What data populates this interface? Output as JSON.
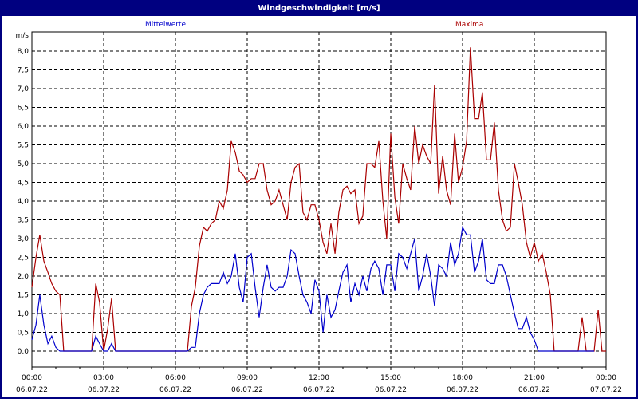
{
  "window": {
    "title": "Windgeschwindigkeit [m/s]"
  },
  "colors": {
    "titlebar": "#000080",
    "mean": "#0000cc",
    "max": "#aa0000",
    "grid": "#000000"
  },
  "chart_data": {
    "type": "line",
    "title": "Windgeschwindigkeit [m/s]",
    "xlabel": "",
    "ylabel": "m/s",
    "ylim": [
      -0.4,
      8.4
    ],
    "yticks": [
      "0,0",
      "0,5",
      "1,0",
      "1,5",
      "2,0",
      "2,5",
      "3,0",
      "3,5",
      "4,0",
      "4,5",
      "5,0",
      "5,5",
      "6,0",
      "6,5",
      "7,0",
      "7,5",
      "8,0"
    ],
    "xticks": [
      {
        "time": "00:00",
        "date": "06.07.22"
      },
      {
        "time": "03:00",
        "date": "06.07.22"
      },
      {
        "time": "06:00",
        "date": "06.07.22"
      },
      {
        "time": "09:00",
        "date": "06.07.22"
      },
      {
        "time": "12:00",
        "date": "06.07.22"
      },
      {
        "time": "15:00",
        "date": "06.07.22"
      },
      {
        "time": "18:00",
        "date": "06.07.22"
      },
      {
        "time": "21:00",
        "date": "06.07.22"
      },
      {
        "time": "00:00",
        "date": "07.07.22"
      }
    ],
    "grid": true,
    "legend": [
      "Mittelwerte",
      "Maxima"
    ],
    "x_unit": "hours since 06.07.22 00:00",
    "series": [
      {
        "name": "Mittelwerte",
        "color": "#0000cc",
        "points": [
          [
            0,
            0.3
          ],
          [
            0.17,
            0.7
          ],
          [
            0.33,
            1.5
          ],
          [
            0.5,
            0.7
          ],
          [
            0.67,
            0.2
          ],
          [
            0.83,
            0.4
          ],
          [
            1.0,
            0.1
          ],
          [
            1.17,
            0.0
          ],
          [
            1.5,
            0.0
          ],
          [
            2.0,
            0.0
          ],
          [
            2.5,
            0.0
          ],
          [
            2.67,
            0.4
          ],
          [
            2.83,
            0.2
          ],
          [
            3.0,
            0.0
          ],
          [
            3.17,
            0.0
          ],
          [
            3.33,
            0.2
          ],
          [
            3.5,
            0.0
          ],
          [
            4.0,
            0.0
          ],
          [
            5.0,
            0.0
          ],
          [
            6.0,
            0.0
          ],
          [
            6.5,
            0.0
          ],
          [
            6.67,
            0.1
          ],
          [
            6.83,
            0.1
          ],
          [
            7.0,
            1.0
          ],
          [
            7.17,
            1.5
          ],
          [
            7.33,
            1.7
          ],
          [
            7.5,
            1.8
          ],
          [
            7.83,
            1.8
          ],
          [
            8.0,
            2.1
          ],
          [
            8.17,
            1.8
          ],
          [
            8.33,
            2.0
          ],
          [
            8.5,
            2.6
          ],
          [
            8.67,
            1.7
          ],
          [
            8.83,
            1.3
          ],
          [
            9.0,
            2.5
          ],
          [
            9.17,
            2.6
          ],
          [
            9.33,
            1.7
          ],
          [
            9.5,
            0.9
          ],
          [
            9.67,
            1.7
          ],
          [
            9.83,
            2.3
          ],
          [
            10.0,
            1.7
          ],
          [
            10.17,
            1.6
          ],
          [
            10.33,
            1.7
          ],
          [
            10.5,
            1.7
          ],
          [
            10.67,
            2.0
          ],
          [
            10.83,
            2.7
          ],
          [
            11.0,
            2.6
          ],
          [
            11.17,
            2.0
          ],
          [
            11.33,
            1.5
          ],
          [
            11.5,
            1.3
          ],
          [
            11.67,
            1.0
          ],
          [
            11.83,
            1.9
          ],
          [
            12.0,
            1.6
          ],
          [
            12.17,
            0.5
          ],
          [
            12.33,
            1.5
          ],
          [
            12.5,
            0.9
          ],
          [
            12.67,
            1.1
          ],
          [
            12.83,
            1.6
          ],
          [
            13.0,
            2.1
          ],
          [
            13.17,
            2.3
          ],
          [
            13.33,
            1.3
          ],
          [
            13.5,
            1.8
          ],
          [
            13.67,
            1.5
          ],
          [
            13.83,
            2.0
          ],
          [
            14.0,
            1.6
          ],
          [
            14.17,
            2.2
          ],
          [
            14.33,
            2.4
          ],
          [
            14.5,
            2.2
          ],
          [
            14.67,
            1.5
          ],
          [
            14.83,
            2.3
          ],
          [
            15.0,
            2.3
          ],
          [
            15.17,
            1.6
          ],
          [
            15.33,
            2.6
          ],
          [
            15.5,
            2.5
          ],
          [
            15.67,
            2.2
          ],
          [
            15.83,
            2.6
          ],
          [
            16.0,
            3.0
          ],
          [
            16.17,
            1.6
          ],
          [
            16.33,
            2.0
          ],
          [
            16.5,
            2.6
          ],
          [
            16.67,
            2.0
          ],
          [
            16.83,
            1.2
          ],
          [
            17.0,
            2.3
          ],
          [
            17.17,
            2.2
          ],
          [
            17.33,
            2.0
          ],
          [
            17.5,
            2.9
          ],
          [
            17.67,
            2.3
          ],
          [
            17.83,
            2.6
          ],
          [
            18.0,
            3.3
          ],
          [
            18.17,
            3.1
          ],
          [
            18.33,
            3.1
          ],
          [
            18.5,
            2.1
          ],
          [
            18.67,
            2.4
          ],
          [
            18.83,
            3.0
          ],
          [
            19.0,
            1.9
          ],
          [
            19.17,
            1.8
          ],
          [
            19.33,
            1.8
          ],
          [
            19.5,
            2.3
          ],
          [
            19.67,
            2.3
          ],
          [
            19.83,
            2.0
          ],
          [
            20.0,
            1.5
          ],
          [
            20.17,
            1.0
          ],
          [
            20.33,
            0.6
          ],
          [
            20.5,
            0.6
          ],
          [
            20.67,
            0.9
          ],
          [
            20.83,
            0.5
          ],
          [
            21.0,
            0.3
          ],
          [
            21.17,
            0.0
          ],
          [
            22.0,
            0.0
          ],
          [
            23.0,
            0.0
          ],
          [
            23.5,
            0.0
          ]
        ]
      },
      {
        "name": "Maxima",
        "color": "#aa0000",
        "points": [
          [
            0,
            1.7
          ],
          [
            0.17,
            2.5
          ],
          [
            0.33,
            3.1
          ],
          [
            0.5,
            2.4
          ],
          [
            0.67,
            2.1
          ],
          [
            0.83,
            1.8
          ],
          [
            1.0,
            1.6
          ],
          [
            1.17,
            1.5
          ],
          [
            1.33,
            0.0
          ],
          [
            1.5,
            0.0
          ],
          [
            2.0,
            0.0
          ],
          [
            2.5,
            0.0
          ],
          [
            2.67,
            1.8
          ],
          [
            2.83,
            1.3
          ],
          [
            3.0,
            0.0
          ],
          [
            3.17,
            0.6
          ],
          [
            3.33,
            1.4
          ],
          [
            3.5,
            0.0
          ],
          [
            4.0,
            0.0
          ],
          [
            5.0,
            0.0
          ],
          [
            6.0,
            0.0
          ],
          [
            6.5,
            0.0
          ],
          [
            6.67,
            1.2
          ],
          [
            6.83,
            1.7
          ],
          [
            7.0,
            2.8
          ],
          [
            7.17,
            3.3
          ],
          [
            7.33,
            3.2
          ],
          [
            7.5,
            3.4
          ],
          [
            7.67,
            3.5
          ],
          [
            7.83,
            4.0
          ],
          [
            8.0,
            3.8
          ],
          [
            8.17,
            4.3
          ],
          [
            8.33,
            5.6
          ],
          [
            8.5,
            5.3
          ],
          [
            8.67,
            4.8
          ],
          [
            8.83,
            4.7
          ],
          [
            9.0,
            4.5
          ],
          [
            9.17,
            4.6
          ],
          [
            9.33,
            4.6
          ],
          [
            9.5,
            5.0
          ],
          [
            9.67,
            5.0
          ],
          [
            9.83,
            4.3
          ],
          [
            10.0,
            3.9
          ],
          [
            10.17,
            4.0
          ],
          [
            10.33,
            4.3
          ],
          [
            10.5,
            3.9
          ],
          [
            10.67,
            3.5
          ],
          [
            10.83,
            4.5
          ],
          [
            11.0,
            4.9
          ],
          [
            11.17,
            5.0
          ],
          [
            11.33,
            3.7
          ],
          [
            11.5,
            3.5
          ],
          [
            11.67,
            3.9
          ],
          [
            11.83,
            3.9
          ],
          [
            12.0,
            3.5
          ],
          [
            12.17,
            2.9
          ],
          [
            12.33,
            2.6
          ],
          [
            12.5,
            3.4
          ],
          [
            12.67,
            2.6
          ],
          [
            12.83,
            3.7
          ],
          [
            13.0,
            4.3
          ],
          [
            13.17,
            4.4
          ],
          [
            13.33,
            4.2
          ],
          [
            13.5,
            4.3
          ],
          [
            13.67,
            3.4
          ],
          [
            13.83,
            3.6
          ],
          [
            14.0,
            5.0
          ],
          [
            14.17,
            5.0
          ],
          [
            14.33,
            4.9
          ],
          [
            14.5,
            5.6
          ],
          [
            14.67,
            4.0
          ],
          [
            14.83,
            3.0
          ],
          [
            15.0,
            5.8
          ],
          [
            15.17,
            4.1
          ],
          [
            15.33,
            3.4
          ],
          [
            15.5,
            5.0
          ],
          [
            15.67,
            4.6
          ],
          [
            15.83,
            4.3
          ],
          [
            16.0,
            6.0
          ],
          [
            16.17,
            5.0
          ],
          [
            16.33,
            5.5
          ],
          [
            16.5,
            5.2
          ],
          [
            16.67,
            5.0
          ],
          [
            16.83,
            7.1
          ],
          [
            17.0,
            4.2
          ],
          [
            17.17,
            5.2
          ],
          [
            17.33,
            4.3
          ],
          [
            17.5,
            3.9
          ],
          [
            17.67,
            5.8
          ],
          [
            17.83,
            4.5
          ],
          [
            18.0,
            4.9
          ],
          [
            18.17,
            5.6
          ],
          [
            18.33,
            8.1
          ],
          [
            18.5,
            6.2
          ],
          [
            18.67,
            6.2
          ],
          [
            18.83,
            6.9
          ],
          [
            19.0,
            5.1
          ],
          [
            19.17,
            5.1
          ],
          [
            19.33,
            6.1
          ],
          [
            19.5,
            4.3
          ],
          [
            19.67,
            3.5
          ],
          [
            19.83,
            3.2
          ],
          [
            20.0,
            3.3
          ],
          [
            20.17,
            5.0
          ],
          [
            20.33,
            4.5
          ],
          [
            20.5,
            3.9
          ],
          [
            20.67,
            2.9
          ],
          [
            20.83,
            2.5
          ],
          [
            21.0,
            2.9
          ],
          [
            21.17,
            2.4
          ],
          [
            21.33,
            2.6
          ],
          [
            21.5,
            2.1
          ],
          [
            21.67,
            1.5
          ],
          [
            21.83,
            0.0
          ],
          [
            22.0,
            0.0
          ],
          [
            22.5,
            0.0
          ],
          [
            22.83,
            0.0
          ],
          [
            23.0,
            0.9
          ],
          [
            23.17,
            0.0
          ],
          [
            23.5,
            0.0
          ],
          [
            23.67,
            1.1
          ],
          [
            23.83,
            0.0
          ],
          [
            24.0,
            0.0
          ]
        ]
      }
    ]
  }
}
